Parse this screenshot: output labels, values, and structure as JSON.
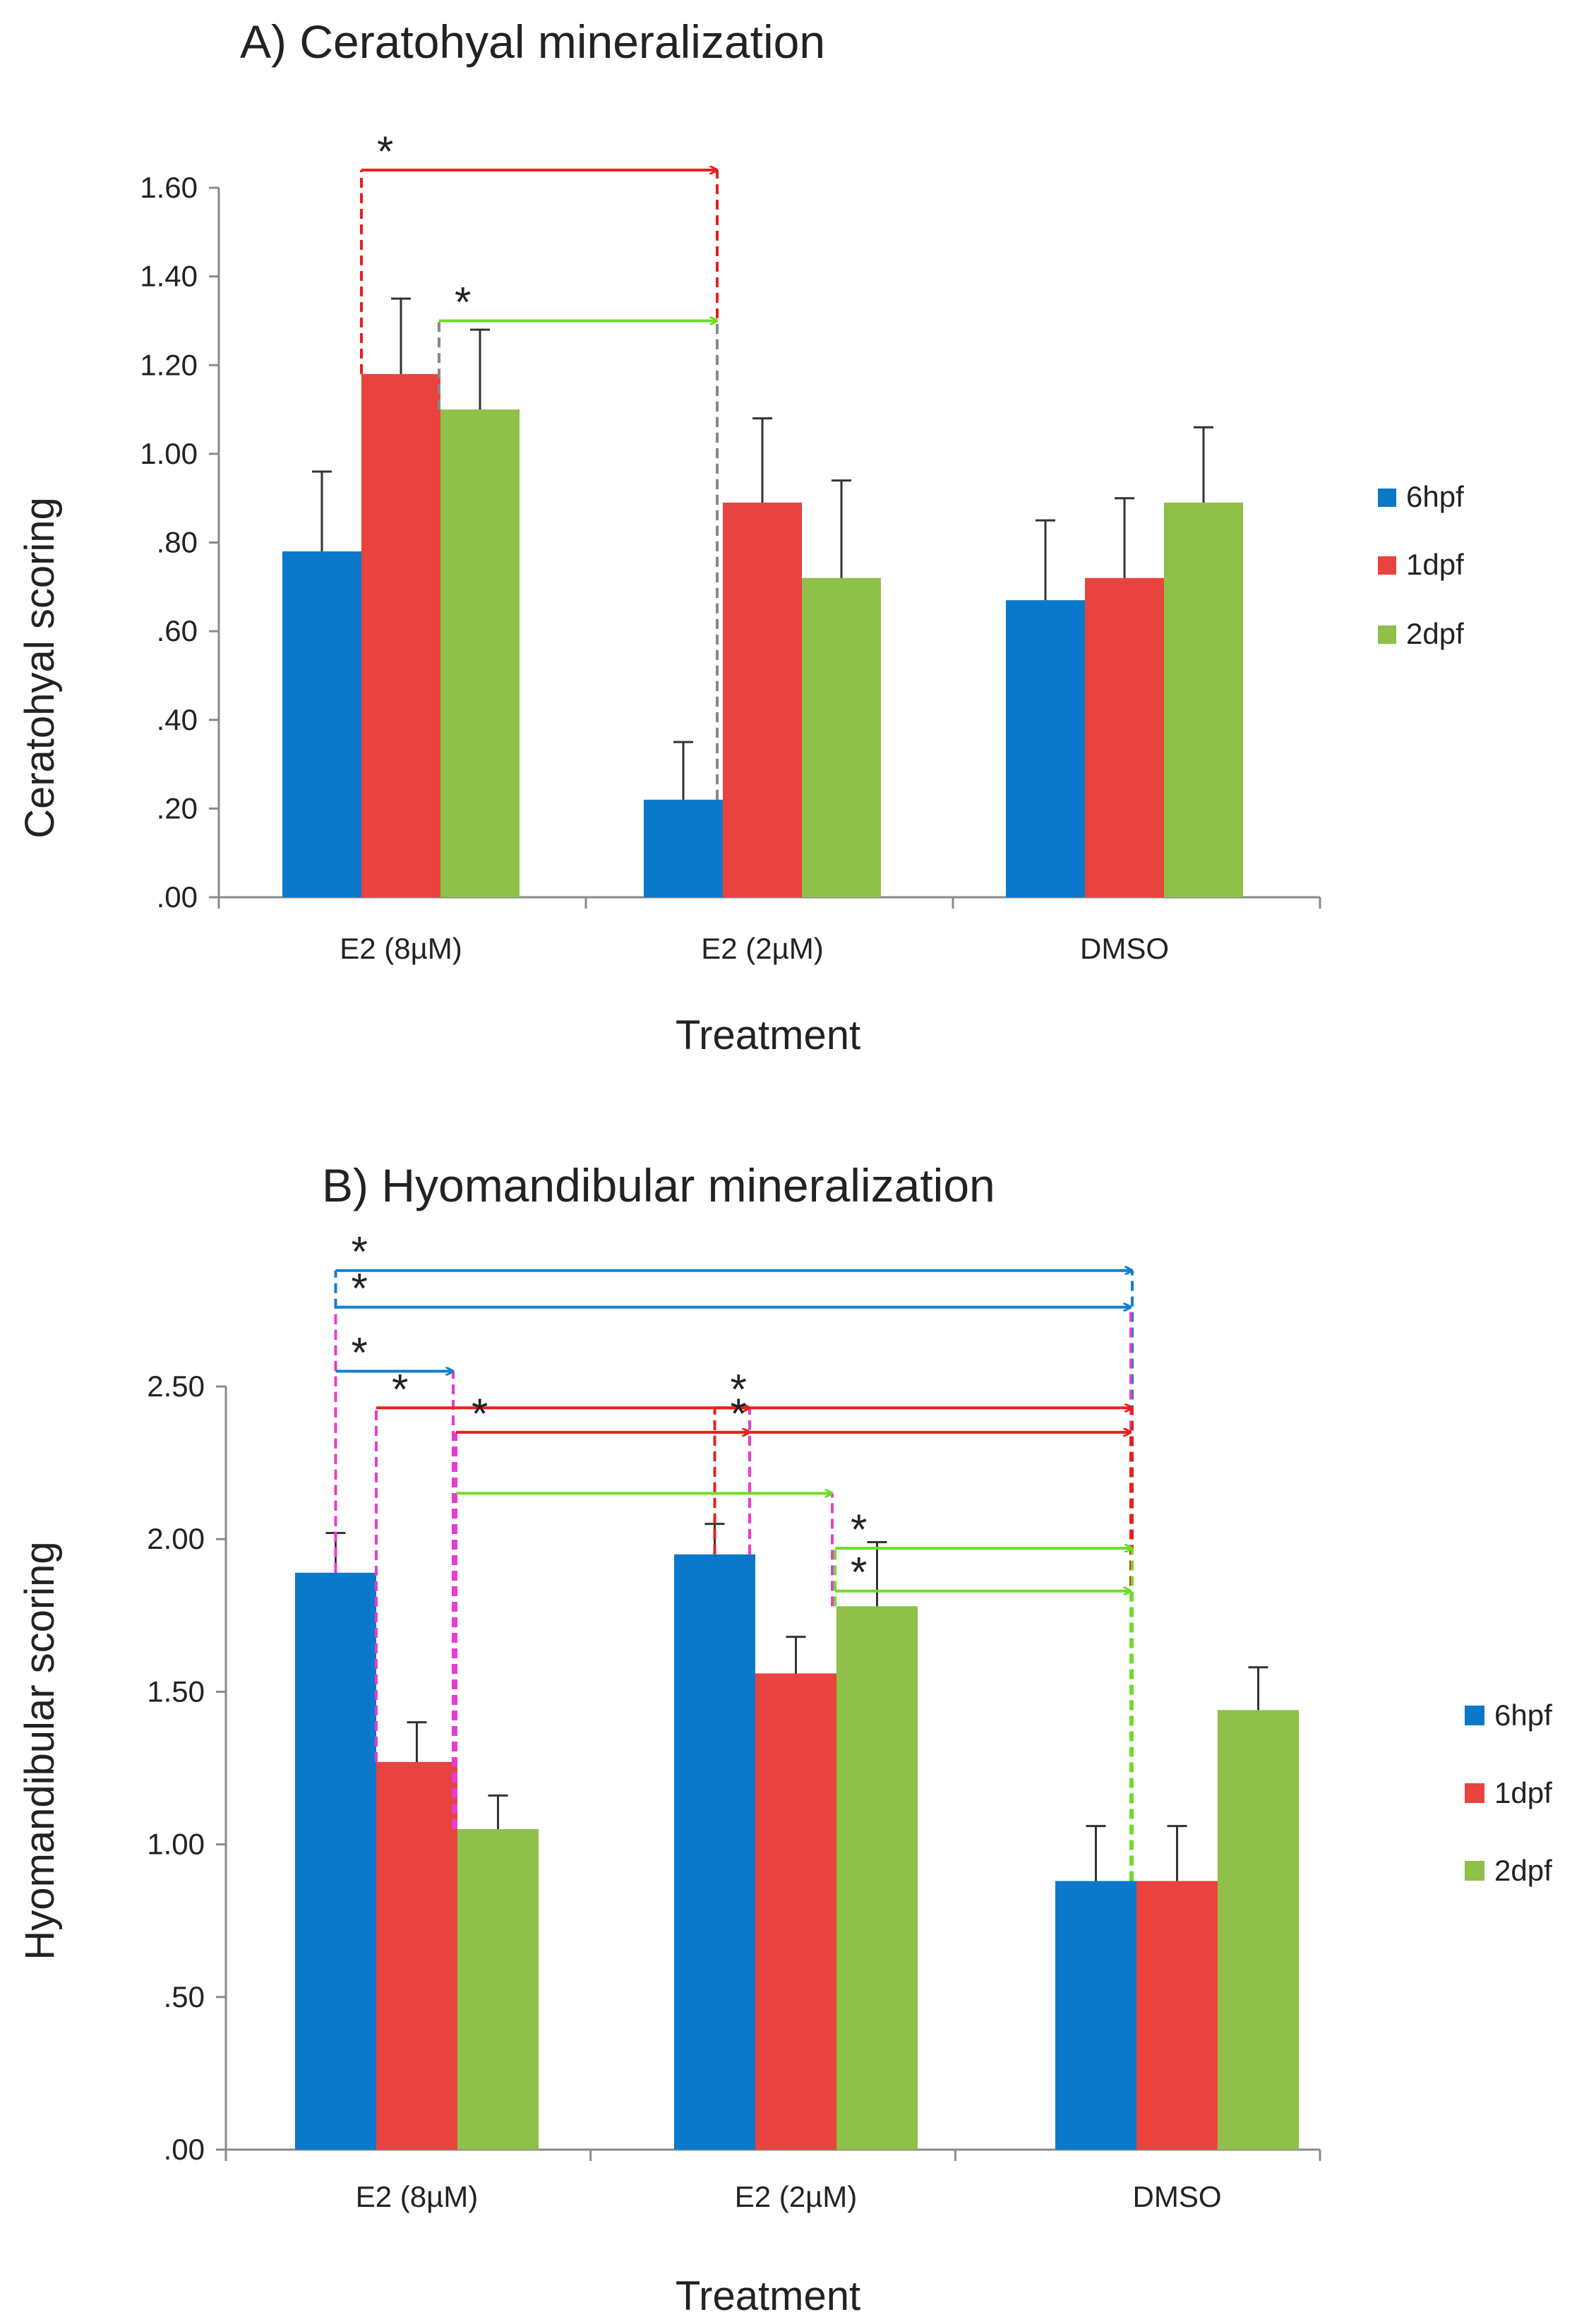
{
  "colors": {
    "series_6hpf": "#0b79c9",
    "series_1dpf": "#e8433f",
    "series_2dpf": "#8ec04a",
    "axis": "#8a8a8a",
    "error": "#333333",
    "ann_red": "#e8201c",
    "ann_green": "#6fdc2a",
    "ann_blue": "#0f7fd2",
    "ann_magenta": "#e83cd0",
    "ann_gray": "#888888"
  },
  "chart_data": [
    {
      "id": "A",
      "type": "bar",
      "title": "A) Ceratohyal mineralization",
      "xlabel": "Treatment",
      "ylabel": "Ceratohyal scoring",
      "ylim": [
        0,
        1.6
      ],
      "yticks": [
        ".00",
        ".20",
        ".40",
        ".60",
        ".80",
        "1.00",
        "1.20",
        "1.40",
        "1.60"
      ],
      "categories": [
        "E2 (8µM)",
        "E2 (2µM)",
        "DMSO"
      ],
      "series": [
        {
          "name": "6hpf",
          "values": [
            0.78,
            0.22,
            0.67
          ],
          "errors": [
            0.18,
            0.13,
            0.18
          ]
        },
        {
          "name": "1dpf",
          "values": [
            1.18,
            0.89,
            0.72
          ],
          "errors": [
            0.17,
            0.19,
            0.18
          ]
        },
        {
          "name": "2dpf",
          "values": [
            1.1,
            0.72,
            0.89
          ],
          "errors": [
            0.18,
            0.22,
            0.17
          ]
        }
      ],
      "legend": [
        "6hpf",
        "1dpf",
        "2dpf"
      ],
      "annotations": [
        {
          "from": [
            0,
            1
          ],
          "to": [
            1,
            0
          ],
          "level": 1.64,
          "color": "ann_red",
          "drop": "ann_red",
          "label": "*"
        },
        {
          "from": [
            0,
            2
          ],
          "to": [
            1,
            0
          ],
          "level": 1.3,
          "color": "ann_green",
          "drop": "ann_gray",
          "label": "*"
        }
      ]
    },
    {
      "id": "B",
      "type": "bar",
      "title": "B) Hyomandibular mineralization",
      "xlabel": "Treatment",
      "ylabel": "Hyomandibular  scoring",
      "ylim": [
        0,
        2.5
      ],
      "yticks": [
        ".00",
        ".50",
        "1.00",
        "1.50",
        "2.00",
        "2.50"
      ],
      "categories": [
        "E2 (8µM)",
        "E2 (2µM)",
        "DMSO"
      ],
      "series": [
        {
          "name": "6hpf",
          "values": [
            1.89,
            1.95,
            0.88
          ],
          "errors": [
            0.13,
            0.1,
            0.18
          ]
        },
        {
          "name": "1dpf",
          "values": [
            1.27,
            1.56,
            0.88
          ],
          "errors": [
            0.13,
            0.12,
            0.18
          ]
        },
        {
          "name": "2dpf",
          "values": [
            1.05,
            1.78,
            1.44
          ],
          "errors": [
            0.11,
            0.21,
            0.14
          ]
        }
      ],
      "legend": [
        "6hpf",
        "1dpf",
        "2dpf"
      ],
      "annotations": [
        {
          "from": [
            0,
            0
          ],
          "to": [
            2,
            1
          ],
          "level": 2.88,
          "color": "ann_blue",
          "drop": "ann_blue",
          "label": "*"
        },
        {
          "from": [
            0,
            0
          ],
          "to": [
            2,
            0
          ],
          "level": 2.76,
          "color": "ann_blue",
          "drop": "ann_magenta",
          "label": "*"
        },
        {
          "from": [
            0,
            0
          ],
          "to": [
            0,
            2
          ],
          "level": 2.55,
          "color": "ann_blue",
          "drop": "ann_magenta",
          "label": "*"
        },
        {
          "from": [
            0,
            1
          ],
          "to": [
            1,
            0
          ],
          "level": 2.43,
          "color": "ann_red",
          "drop": "ann_magenta",
          "label": "*"
        },
        {
          "from": [
            0,
            2
          ],
          "to": [
            1,
            0
          ],
          "level": 2.35,
          "color": "ann_red",
          "drop": "ann_magenta",
          "label": "*"
        },
        {
          "from": [
            1,
            0
          ],
          "to": [
            2,
            1
          ],
          "level": 2.43,
          "color": "ann_red",
          "drop": "ann_red",
          "label": "*"
        },
        {
          "from": [
            1,
            0
          ],
          "to": [
            2,
            0
          ],
          "level": 2.35,
          "color": "ann_red",
          "drop": "ann_red",
          "label": "*"
        },
        {
          "from": [
            0,
            2
          ],
          "to": [
            1,
            2
          ],
          "level": 2.15,
          "color": "ann_green",
          "drop": "ann_magenta",
          "label": ""
        },
        {
          "from": [
            1,
            2
          ],
          "to": [
            2,
            1
          ],
          "level": 1.97,
          "color": "ann_green",
          "drop": "ann_green",
          "label": "*"
        },
        {
          "from": [
            1,
            2
          ],
          "to": [
            2,
            0
          ],
          "level": 1.83,
          "color": "ann_green",
          "drop": "ann_green",
          "label": "*"
        }
      ]
    }
  ]
}
